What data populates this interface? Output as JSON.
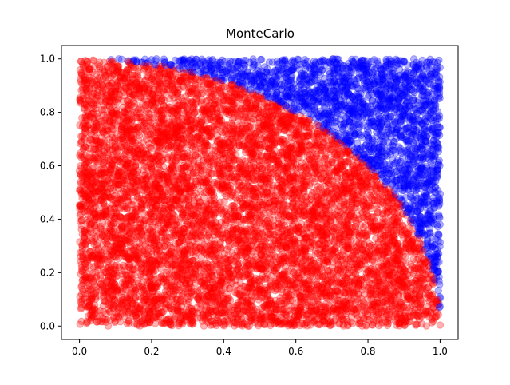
{
  "figure": {
    "background": "#ffffff"
  },
  "chart_data": {
    "type": "scatter",
    "title": "MonteCarlo",
    "xlabel": "",
    "ylabel": "",
    "xlim": [
      -0.05,
      1.05
    ],
    "ylim": [
      -0.05,
      1.05
    ],
    "xticks": [
      "0.0",
      "0.2",
      "0.4",
      "0.6",
      "0.8",
      "1.0"
    ],
    "yticks": [
      "0.0",
      "0.2",
      "0.4",
      "0.6",
      "0.8",
      "1.0"
    ],
    "grid": false,
    "legend": "none",
    "point_count_estimate": 10000,
    "rule": "points with x^2 + y^2 <= 1 are red, others blue",
    "series": [
      {
        "color": "#ff0000",
        "alpha": 0.3,
        "region": "inside unit circle (x^2 + y^2 <= 1)"
      },
      {
        "color": "#0000ff",
        "alpha": 0.3,
        "region": "outside unit circle (x^2 + y^2 > 1)"
      }
    ]
  }
}
